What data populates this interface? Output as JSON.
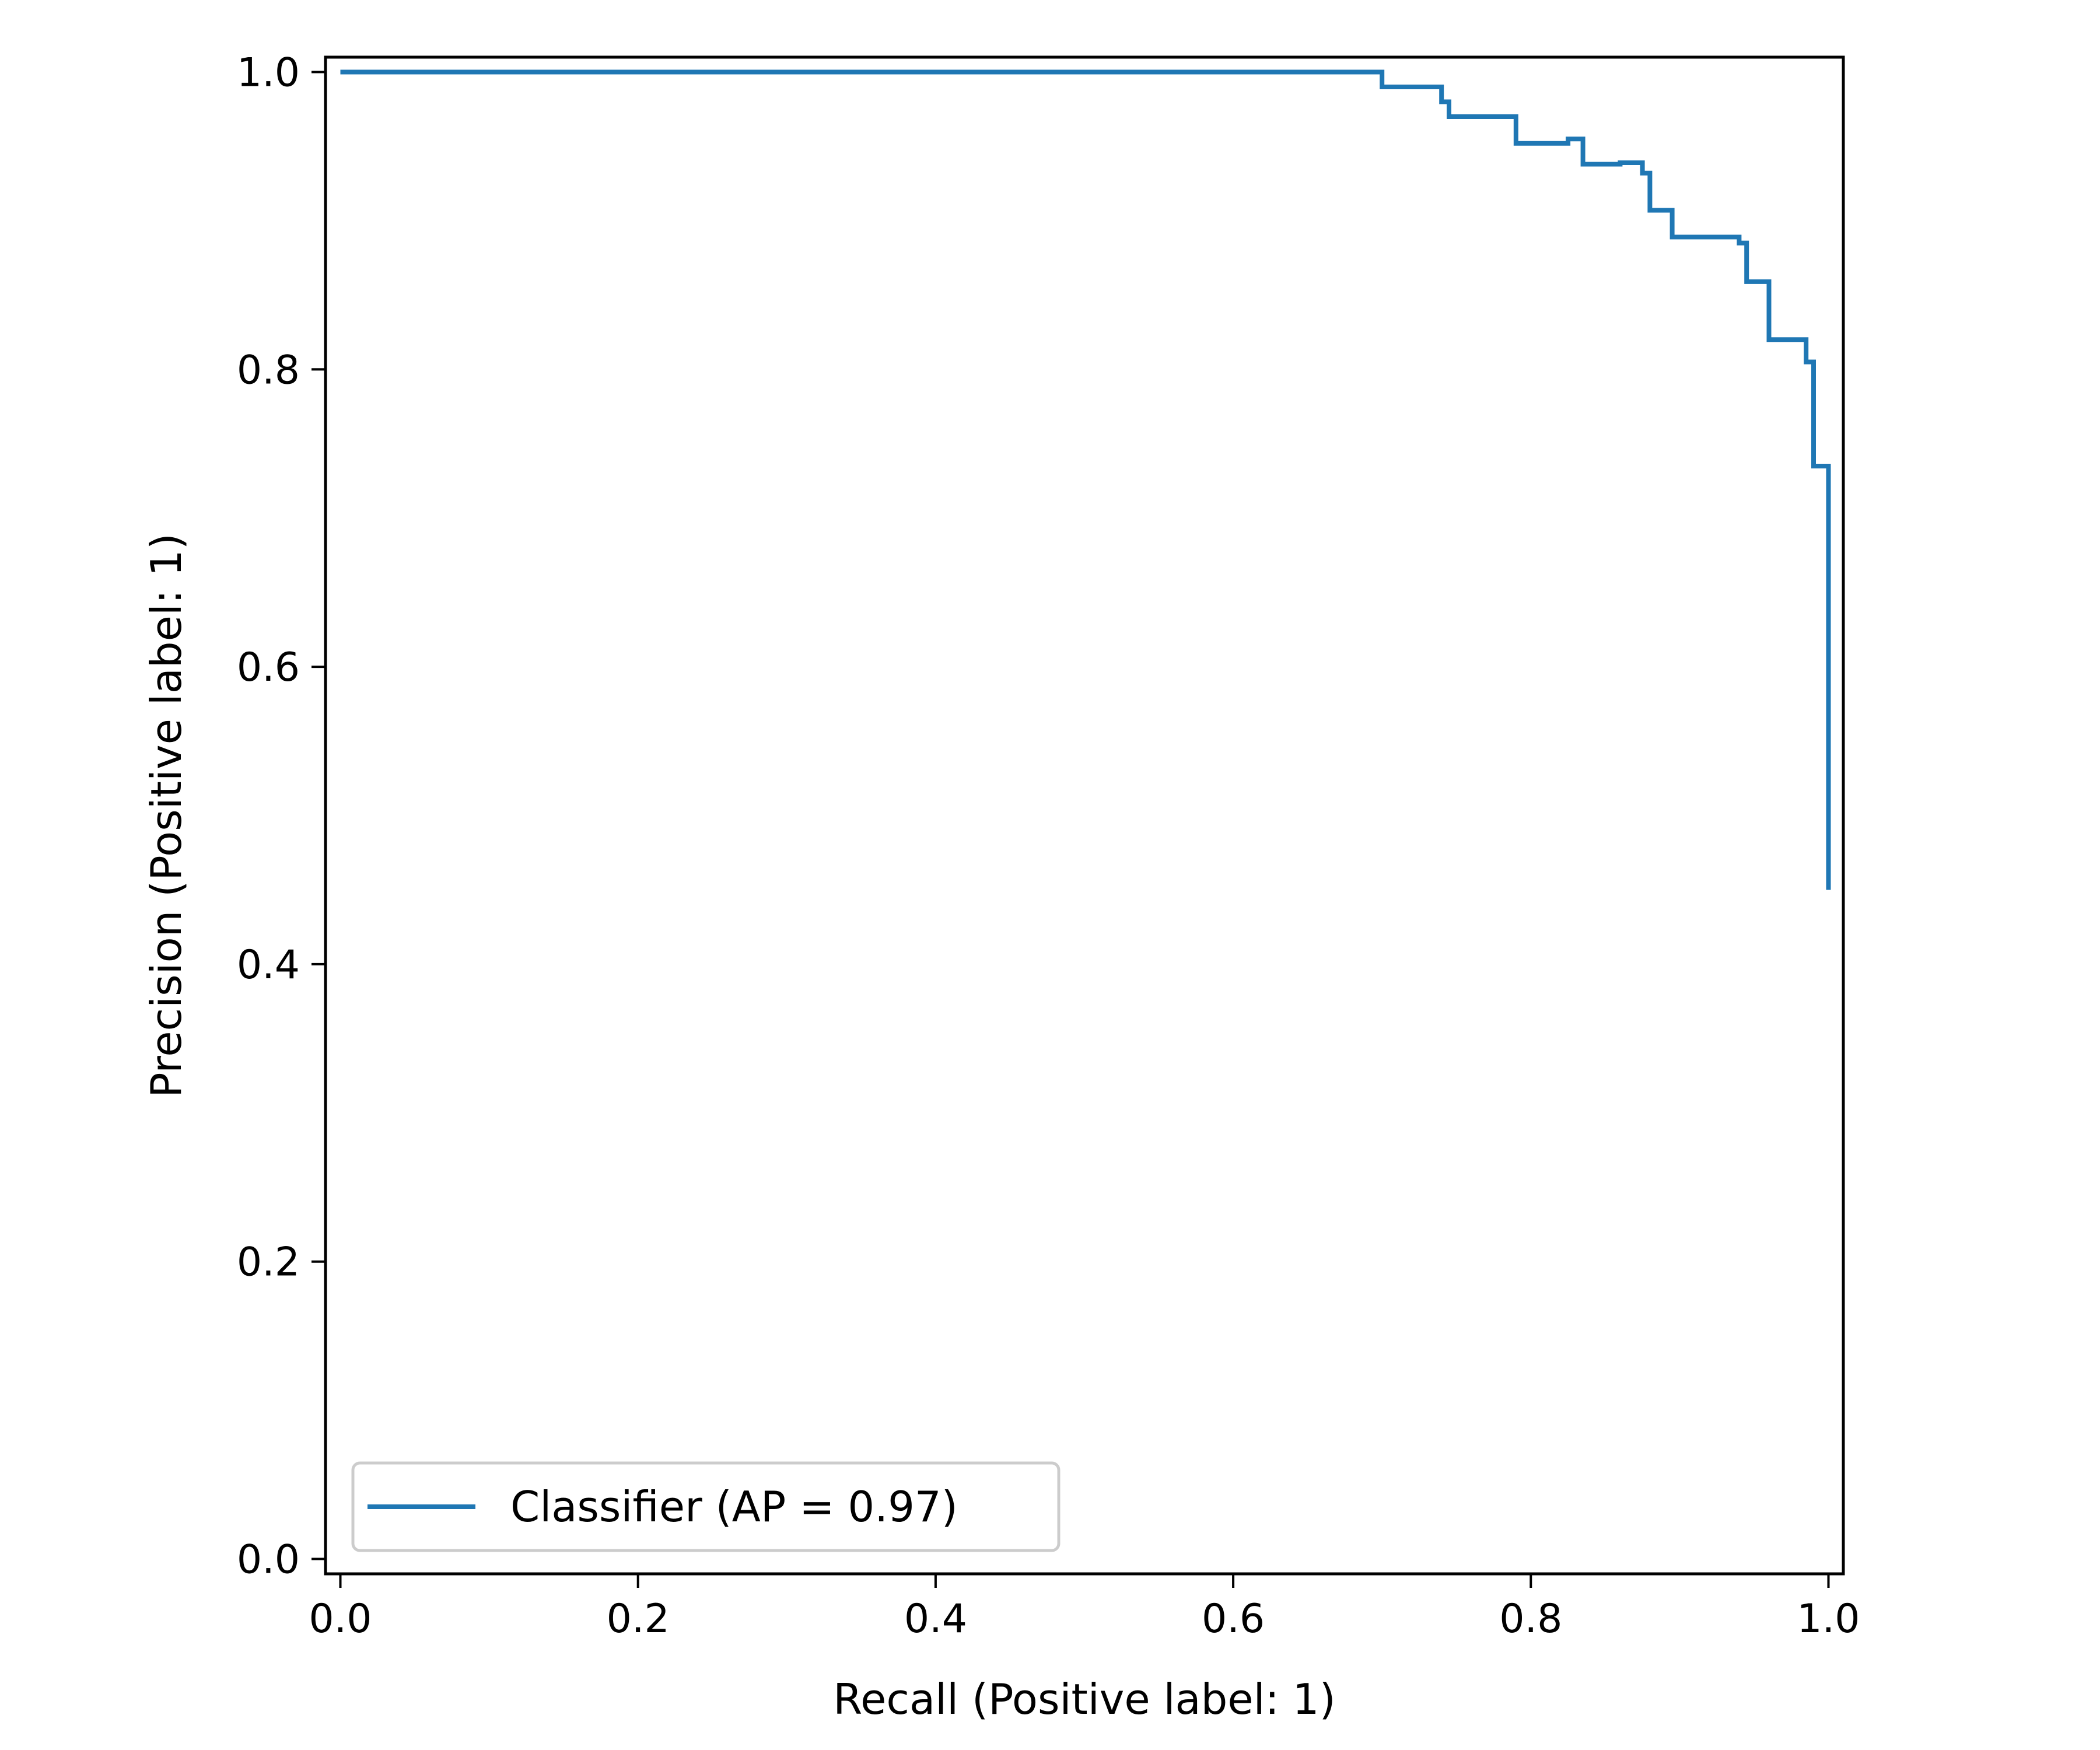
{
  "chart_data": {
    "type": "line",
    "title": "",
    "xlabel": "Recall (Positive label: 1)",
    "ylabel": "Precision (Positive label: 1)",
    "xlim": [
      -0.01,
      1.01
    ],
    "ylim": [
      -0.01,
      1.01
    ],
    "xticks": [
      {
        "value": 0.0,
        "label": "0.0"
      },
      {
        "value": 0.2,
        "label": "0.2"
      },
      {
        "value": 0.4,
        "label": "0.4"
      },
      {
        "value": 0.6,
        "label": "0.6"
      },
      {
        "value": 0.8,
        "label": "0.8"
      },
      {
        "value": 1.0,
        "label": "1.0"
      }
    ],
    "yticks": [
      {
        "value": 0.0,
        "label": "0.0"
      },
      {
        "value": 0.2,
        "label": "0.2"
      },
      {
        "value": 0.4,
        "label": "0.4"
      },
      {
        "value": 0.6,
        "label": "0.6"
      },
      {
        "value": 0.8,
        "label": "0.8"
      },
      {
        "value": 1.0,
        "label": "1.0"
      }
    ],
    "grid": false,
    "legend_position": "lower-left",
    "step": "post",
    "series": [
      {
        "name": "Classifier (AP = 0.97)",
        "color": "#1f77b4",
        "points": [
          [
            0.0,
            1.0
          ],
          [
            0.7,
            1.0
          ],
          [
            0.7,
            0.99
          ],
          [
            0.74,
            0.99
          ],
          [
            0.74,
            0.98
          ],
          [
            0.745,
            0.98
          ],
          [
            0.745,
            0.97
          ],
          [
            0.79,
            0.97
          ],
          [
            0.79,
            0.952
          ],
          [
            0.825,
            0.952
          ],
          [
            0.825,
            0.955
          ],
          [
            0.835,
            0.955
          ],
          [
            0.835,
            0.938
          ],
          [
            0.86,
            0.938
          ],
          [
            0.86,
            0.939
          ],
          [
            0.875,
            0.939
          ],
          [
            0.875,
            0.932
          ],
          [
            0.88,
            0.932
          ],
          [
            0.88,
            0.907
          ],
          [
            0.895,
            0.907
          ],
          [
            0.895,
            0.889
          ],
          [
            0.94,
            0.889
          ],
          [
            0.94,
            0.885
          ],
          [
            0.945,
            0.885
          ],
          [
            0.945,
            0.859
          ],
          [
            0.96,
            0.859
          ],
          [
            0.96,
            0.82
          ],
          [
            0.985,
            0.82
          ],
          [
            0.985,
            0.805
          ],
          [
            0.99,
            0.805
          ],
          [
            0.99,
            0.735
          ],
          [
            1.0,
            0.735
          ],
          [
            1.0,
            0.45
          ]
        ]
      }
    ]
  }
}
